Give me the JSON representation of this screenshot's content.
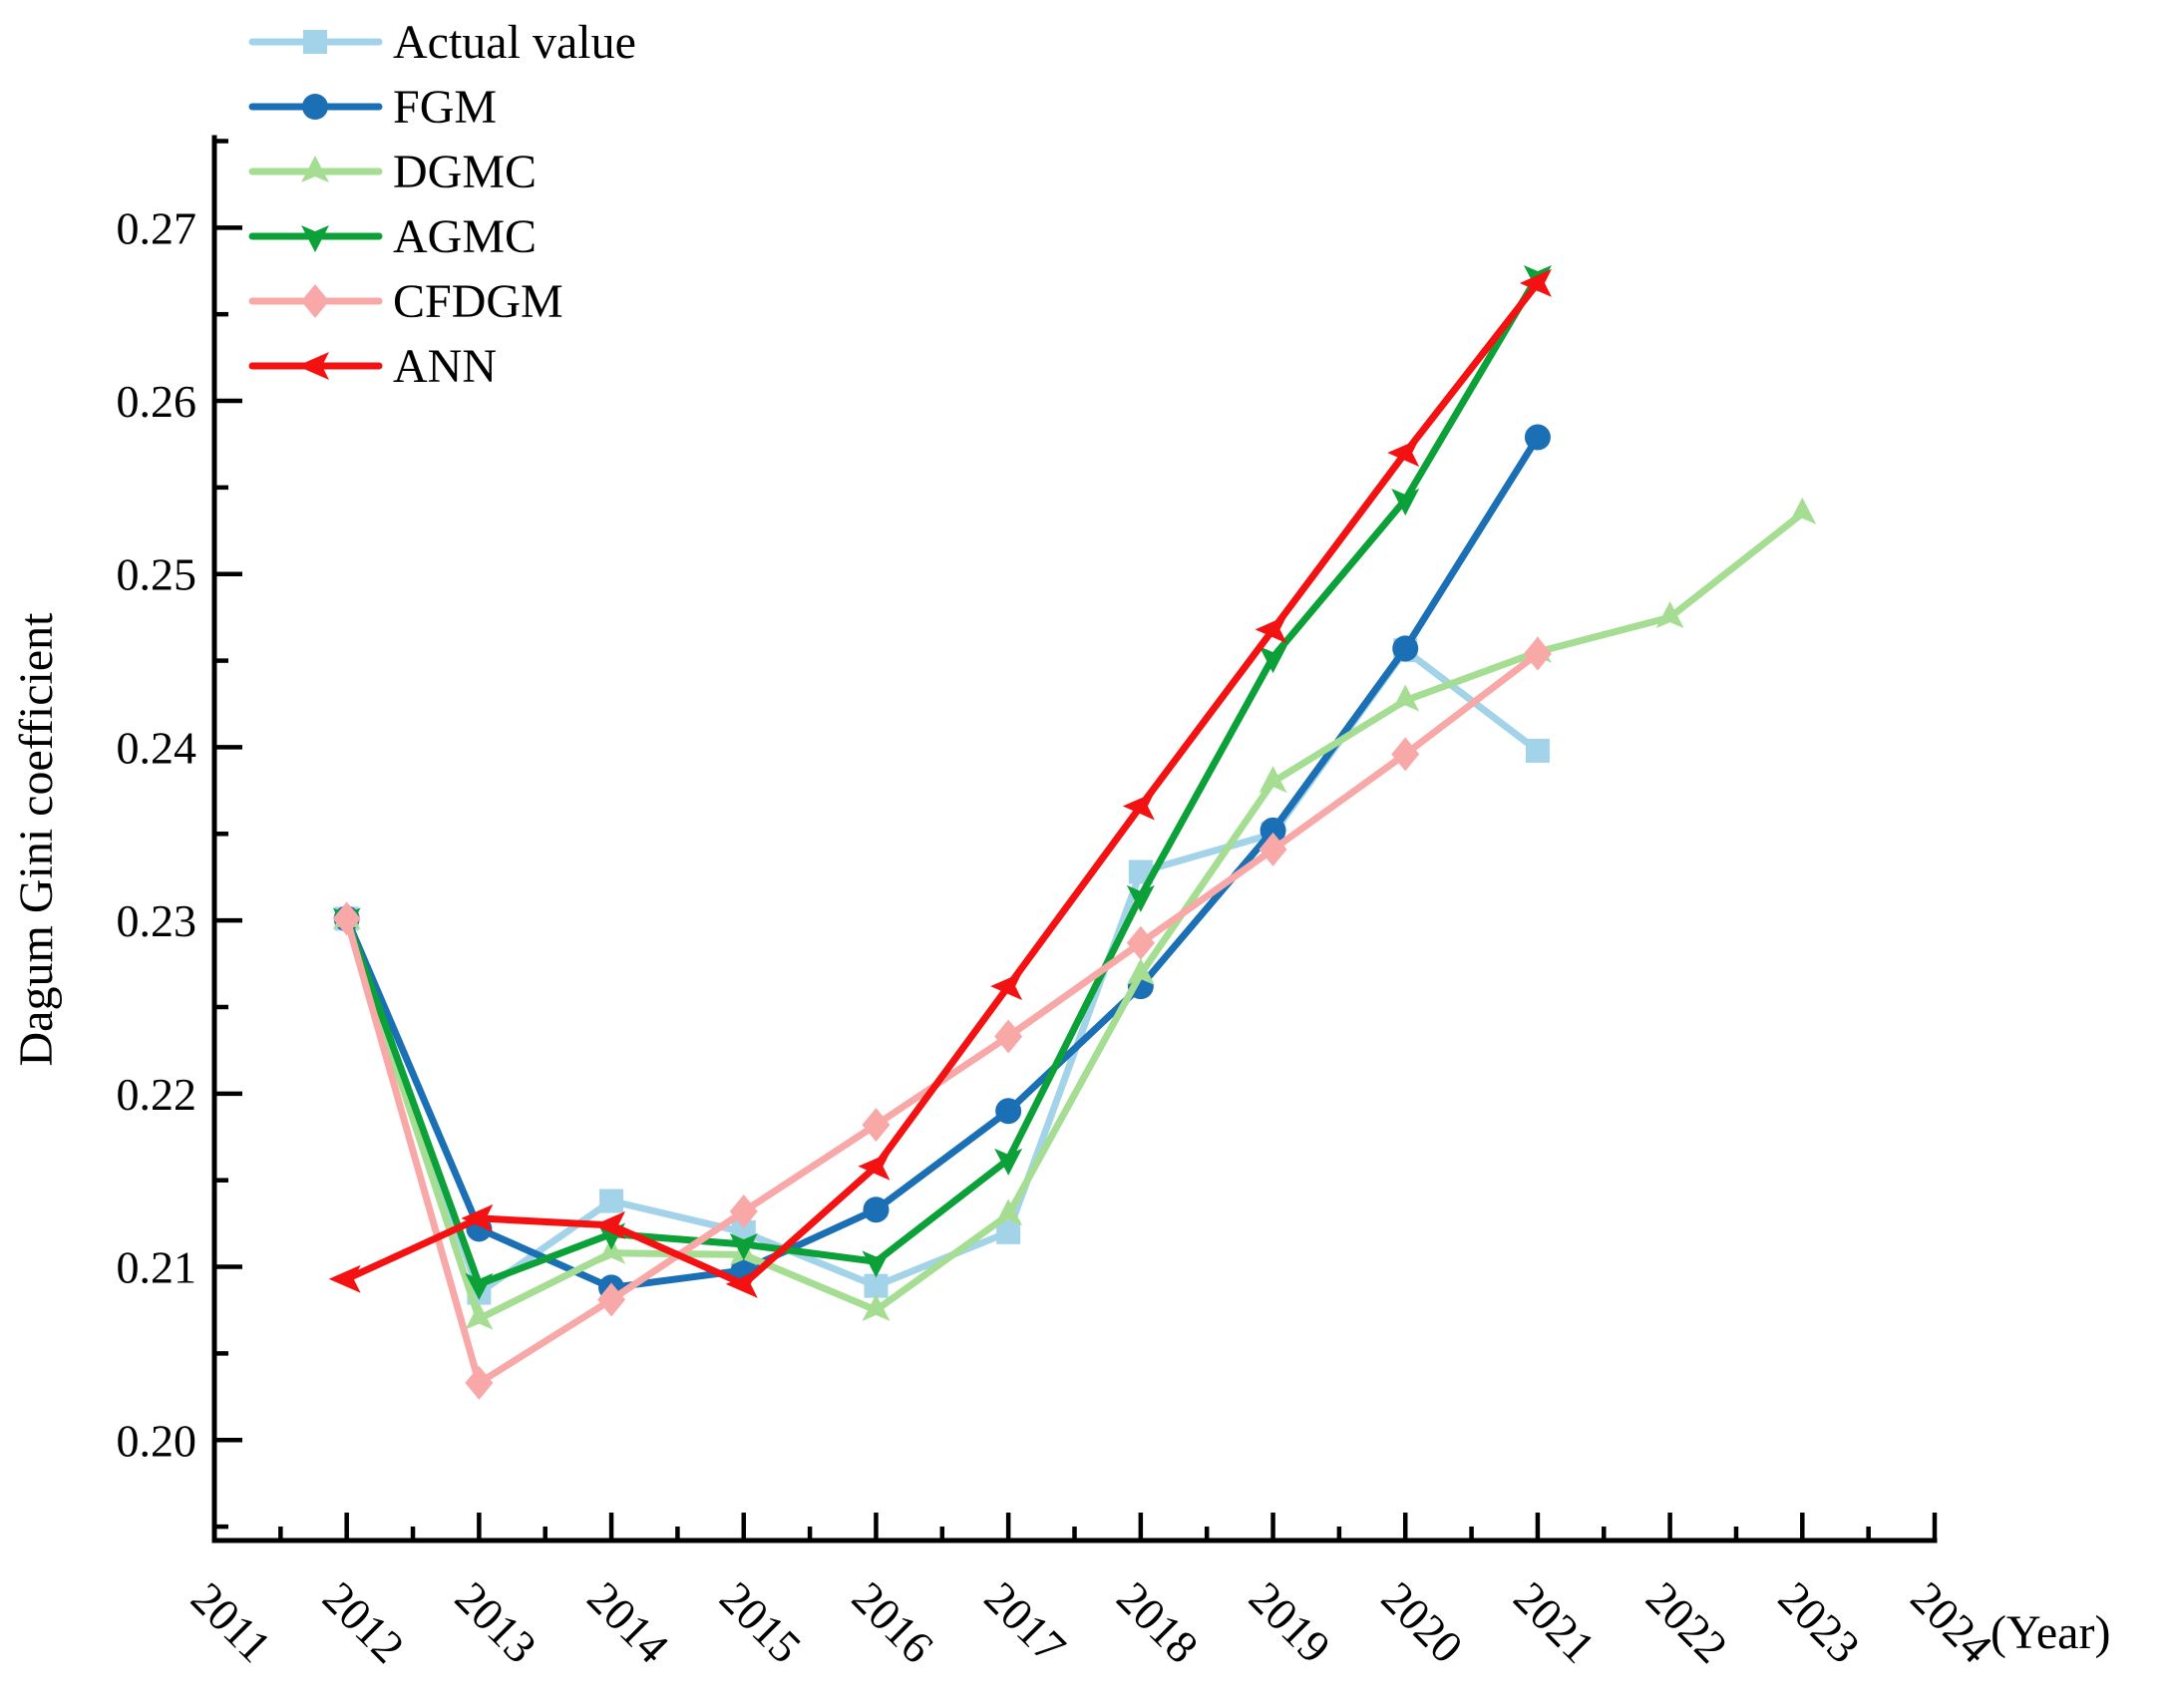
{
  "chart_data": {
    "type": "line",
    "title": "",
    "ylabel": "Dagum Gini coefficient",
    "xlabel": "(Year)",
    "xlim": [
      2011,
      2024
    ],
    "ylim": [
      0.1942,
      0.2752
    ],
    "grid": false,
    "legend_position": "top-left",
    "x_tick_labels": [
      "2011",
      "2012",
      "2013",
      "2014",
      "2015",
      "2016",
      "2017",
      "2018",
      "2019",
      "2020",
      "2021",
      "2022",
      "2023",
      "2024"
    ],
    "x_major_ticks": [
      2012,
      2013,
      2014,
      2015,
      2016,
      2017,
      2018,
      2019,
      2020,
      2021,
      2022,
      2023,
      2024
    ],
    "x_minor_ticks": [
      2011.5,
      2012.5,
      2013.5,
      2014.5,
      2015.5,
      2016.5,
      2017.5,
      2018.5,
      2019.5,
      2020.5,
      2021.5,
      2022.5,
      2023.5
    ],
    "y_major_ticks": [
      0.2,
      0.21,
      0.22,
      0.23,
      0.24,
      0.25,
      0.26,
      0.27
    ],
    "y_tick_labels": [
      "0.20",
      "0.21",
      "0.22",
      "0.23",
      "0.24",
      "0.25",
      "0.26",
      "0.27"
    ],
    "y_minor_ticks": [
      0.195,
      0.205,
      0.215,
      0.225,
      0.235,
      0.245,
      0.255,
      0.265,
      0.275
    ],
    "series": [
      {
        "name": "Actual value",
        "color": "#a3d3e8",
        "marker": "square",
        "x": [
          2012,
          2013,
          2014,
          2015,
          2016,
          2017,
          2018,
          2019,
          2020,
          2021
        ],
        "y": [
          0.2301,
          0.2085,
          0.2138,
          0.212,
          0.2089,
          0.212,
          0.2328,
          0.235,
          0.2456,
          0.2398
        ]
      },
      {
        "name": "FGM",
        "color": "#1b6fb5",
        "marker": "circle",
        "x": [
          2012,
          2013,
          2014,
          2015,
          2016,
          2017,
          2018,
          2019,
          2020,
          2021
        ],
        "y": [
          0.2301,
          0.2122,
          0.2088,
          0.2098,
          0.2133,
          0.219,
          0.2262,
          0.2352,
          0.2457,
          0.2579
        ]
      },
      {
        "name": "DGMC",
        "color": "#a5dd92",
        "marker": "triangle-up",
        "x": [
          2012,
          2013,
          2014,
          2015,
          2016,
          2017,
          2018,
          2019,
          2020,
          2021,
          2022,
          2023
        ],
        "y": [
          0.2301,
          0.207,
          0.2108,
          0.2107,
          0.2075,
          0.213,
          0.2269,
          0.238,
          0.2427,
          0.2455,
          0.2475,
          0.2535
        ]
      },
      {
        "name": "AGMC",
        "color": "#0ba138",
        "marker": "triangle-down",
        "x": [
          2012,
          2013,
          2014,
          2015,
          2016,
          2017,
          2018,
          2019,
          2020,
          2021
        ],
        "y": [
          0.2301,
          0.209,
          0.2119,
          0.2113,
          0.2103,
          0.2162,
          0.2314,
          0.2452,
          0.2543,
          0.2672
        ]
      },
      {
        "name": "CFDGM",
        "color": "#f9a8a8",
        "marker": "diamond",
        "x": [
          2012,
          2013,
          2014,
          2015,
          2016,
          2017,
          2018,
          2019,
          2020,
          2021
        ],
        "y": [
          0.2301,
          0.2033,
          0.2081,
          0.2132,
          0.2182,
          0.2233,
          0.2287,
          0.2341,
          0.2396,
          0.2454
        ]
      },
      {
        "name": "ANN",
        "color": "#f31111",
        "marker": "arrow-left",
        "x": [
          2012,
          2013,
          2014,
          2015,
          2016,
          2017,
          2018,
          2019,
          2020,
          2021
        ],
        "y": [
          0.2093,
          0.2128,
          0.2124,
          0.209,
          0.2158,
          0.2262,
          0.2366,
          0.2468,
          0.257,
          0.2668
        ]
      }
    ]
  }
}
